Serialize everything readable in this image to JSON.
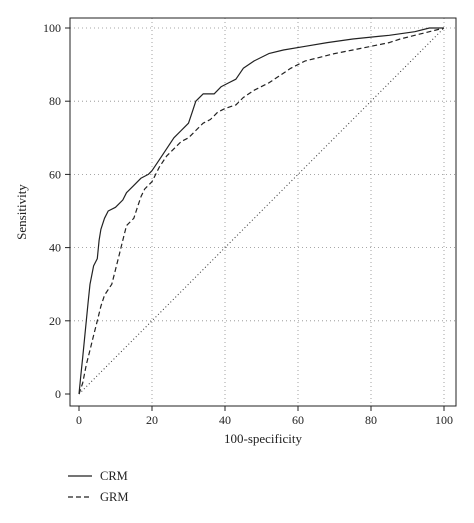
{
  "chart_data": {
    "type": "line",
    "xlabel": "100-specificity",
    "ylabel": "Sensitivity",
    "xlim": [
      0,
      100
    ],
    "ylim": [
      0,
      100
    ],
    "xticks": [
      0,
      20,
      40,
      60,
      80,
      100
    ],
    "yticks": [
      0,
      20,
      40,
      60,
      80,
      100
    ],
    "grid": true,
    "legend_position": "bottom-left",
    "reference_line": {
      "style": "dotted",
      "from": [
        0,
        0
      ],
      "to": [
        100,
        100
      ]
    },
    "series": [
      {
        "name": "CRM",
        "style": "solid",
        "points": [
          [
            0,
            0
          ],
          [
            0.5,
            5
          ],
          [
            1,
            10
          ],
          [
            1.5,
            15
          ],
          [
            2,
            20
          ],
          [
            2.5,
            25
          ],
          [
            3,
            30
          ],
          [
            4,
            35
          ],
          [
            5,
            37
          ],
          [
            5.5,
            42
          ],
          [
            6,
            45
          ],
          [
            7,
            48
          ],
          [
            8,
            50
          ],
          [
            10,
            51
          ],
          [
            12,
            53
          ],
          [
            13,
            55
          ],
          [
            15,
            57
          ],
          [
            17,
            59
          ],
          [
            19,
            60
          ],
          [
            20,
            61
          ],
          [
            22,
            64
          ],
          [
            24,
            67
          ],
          [
            26,
            70
          ],
          [
            28,
            72
          ],
          [
            30,
            74
          ],
          [
            31,
            77
          ],
          [
            32,
            80
          ],
          [
            34,
            82
          ],
          [
            37,
            82
          ],
          [
            39,
            84
          ],
          [
            41,
            85
          ],
          [
            43,
            86
          ],
          [
            45,
            89
          ],
          [
            48,
            91
          ],
          [
            52,
            93
          ],
          [
            56,
            94
          ],
          [
            62,
            95
          ],
          [
            68,
            96
          ],
          [
            75,
            97
          ],
          [
            85,
            98
          ],
          [
            92,
            99
          ],
          [
            96,
            100
          ],
          [
            100,
            100
          ]
        ]
      },
      {
        "name": "GRM",
        "style": "dashed",
        "points": [
          [
            0,
            0
          ],
          [
            1,
            3
          ],
          [
            2,
            8
          ],
          [
            3,
            12
          ],
          [
            4,
            16
          ],
          [
            5,
            20
          ],
          [
            6,
            24
          ],
          [
            7,
            27
          ],
          [
            9,
            30
          ],
          [
            10,
            34
          ],
          [
            11,
            38
          ],
          [
            12,
            42
          ],
          [
            13,
            46
          ],
          [
            15,
            48
          ],
          [
            16,
            51
          ],
          [
            17,
            54
          ],
          [
            18,
            56
          ],
          [
            20,
            58
          ],
          [
            22,
            62
          ],
          [
            24,
            65
          ],
          [
            26,
            67
          ],
          [
            28,
            69
          ],
          [
            30,
            70
          ],
          [
            32,
            72
          ],
          [
            34,
            74
          ],
          [
            36,
            75
          ],
          [
            38,
            77
          ],
          [
            40,
            78
          ],
          [
            43,
            79
          ],
          [
            45,
            81
          ],
          [
            48,
            83
          ],
          [
            52,
            85
          ],
          [
            55,
            87
          ],
          [
            58,
            89
          ],
          [
            62,
            91
          ],
          [
            66,
            92
          ],
          [
            70,
            93
          ],
          [
            75,
            94
          ],
          [
            80,
            95
          ],
          [
            85,
            96
          ],
          [
            88,
            97
          ],
          [
            92,
            98
          ],
          [
            96,
            99
          ],
          [
            100,
            100
          ]
        ]
      }
    ]
  }
}
